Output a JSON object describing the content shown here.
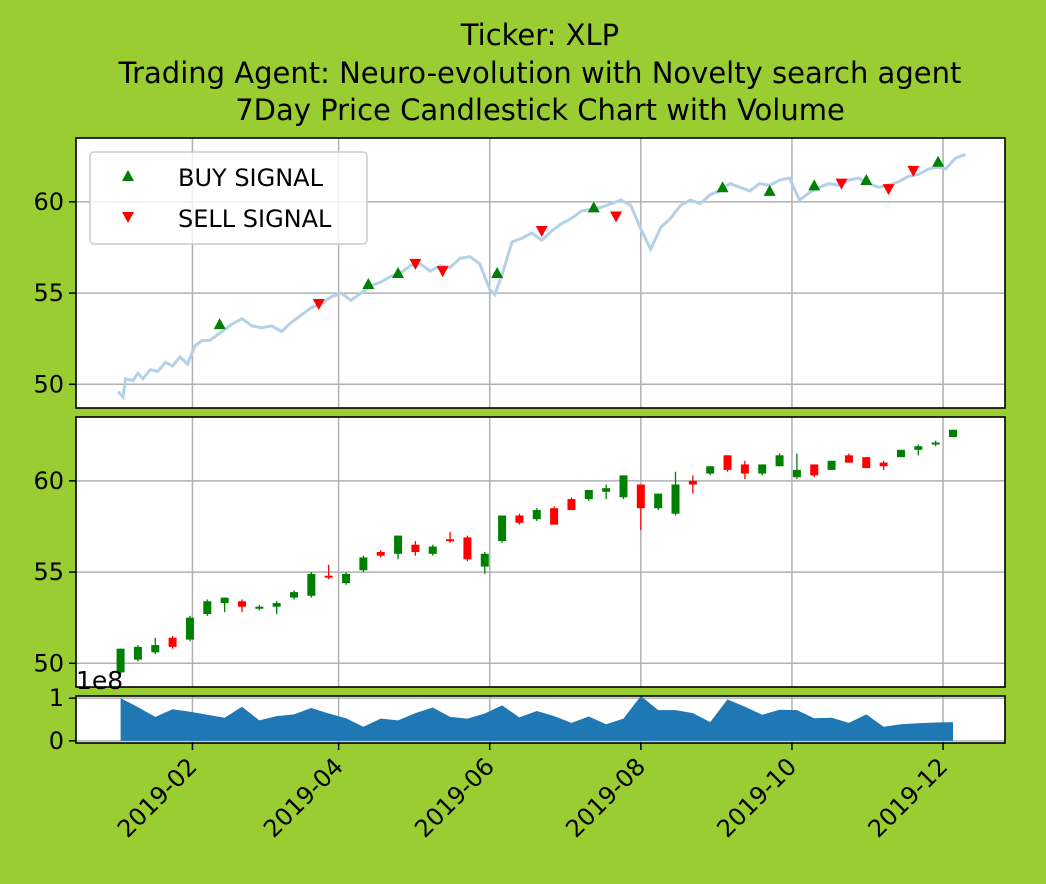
{
  "title_lines": [
    "Ticker: XLP",
    "Trading Agent: Neuro-evolution with Novelty search agent",
    "7Day Price Candlestick Chart with Volume"
  ],
  "colors": {
    "background": "#9acd32",
    "price_line": "#b3d1e9",
    "buy": "#008000",
    "sell": "#ff0000",
    "volume": "#1f77b4",
    "grid": "#b0b0b0"
  },
  "x_axis": {
    "ticks": [
      "2019-02",
      "2019-04",
      "2019-06",
      "2019-08",
      "2019-10",
      "2019-12"
    ],
    "range": [
      "2018-12-16",
      "2019-12-26"
    ]
  },
  "volume_axis": {
    "offset_label": "1e8",
    "ticks": [
      "0",
      "1"
    ]
  },
  "chart_data": [
    {
      "type": "line",
      "name": "price-panel",
      "ylim": [
        48.7,
        63.5
      ],
      "yticks": [
        "50",
        "55",
        "60"
      ],
      "grid": true,
      "legend": {
        "placement": "top-left",
        "entries": [
          "BUY SIGNAL",
          "SELL SIGNAL"
        ]
      },
      "price": [
        [
          "2019-01-02",
          49.6
        ],
        [
          "2019-01-04",
          49.3
        ],
        [
          "2019-01-05",
          50.3
        ],
        [
          "2019-01-08",
          50.2
        ],
        [
          "2019-01-10",
          50.6
        ],
        [
          "2019-01-12",
          50.3
        ],
        [
          "2019-01-15",
          50.8
        ],
        [
          "2019-01-18",
          50.7
        ],
        [
          "2019-01-21",
          51.2
        ],
        [
          "2019-01-24",
          51.0
        ],
        [
          "2019-01-27",
          51.5
        ],
        [
          "2019-01-30",
          51.1
        ],
        [
          "2019-02-02",
          52.1
        ],
        [
          "2019-02-05",
          52.4
        ],
        [
          "2019-02-08",
          52.4
        ],
        [
          "2019-02-11",
          52.7
        ],
        [
          "2019-02-14",
          53.0
        ],
        [
          "2019-02-17",
          53.3
        ],
        [
          "2019-02-21",
          53.6
        ],
        [
          "2019-02-25",
          53.2
        ],
        [
          "2019-03-01",
          53.1
        ],
        [
          "2019-03-05",
          53.2
        ],
        [
          "2019-03-09",
          52.9
        ],
        [
          "2019-03-13",
          53.4
        ],
        [
          "2019-03-17",
          53.8
        ],
        [
          "2019-03-21",
          54.2
        ],
        [
          "2019-03-25",
          54.4
        ],
        [
          "2019-03-29",
          54.8
        ],
        [
          "2019-04-02",
          55.0
        ],
        [
          "2019-04-06",
          54.6
        ],
        [
          "2019-04-10",
          55.0
        ],
        [
          "2019-04-14",
          55.4
        ],
        [
          "2019-04-18",
          55.6
        ],
        [
          "2019-04-22",
          55.9
        ],
        [
          "2019-04-26",
          56.1
        ],
        [
          "2019-04-30",
          56.5
        ],
        [
          "2019-05-04",
          56.6
        ],
        [
          "2019-05-08",
          56.2
        ],
        [
          "2019-05-12",
          56.5
        ],
        [
          "2019-05-16",
          56.4
        ],
        [
          "2019-05-20",
          56.9
        ],
        [
          "2019-05-24",
          57.0
        ],
        [
          "2019-05-28",
          56.6
        ],
        [
          "2019-06-01",
          55.2
        ],
        [
          "2019-06-03",
          54.9
        ],
        [
          "2019-06-06",
          56.0
        ],
        [
          "2019-06-10",
          57.8
        ],
        [
          "2019-06-14",
          58.0
        ],
        [
          "2019-06-18",
          58.3
        ],
        [
          "2019-06-22",
          57.9
        ],
        [
          "2019-06-26",
          58.4
        ],
        [
          "2019-06-30",
          58.8
        ],
        [
          "2019-07-04",
          59.1
        ],
        [
          "2019-07-08",
          59.5
        ],
        [
          "2019-07-12",
          59.6
        ],
        [
          "2019-07-16",
          59.7
        ],
        [
          "2019-07-20",
          59.9
        ],
        [
          "2019-07-24",
          60.1
        ],
        [
          "2019-07-28",
          59.8
        ],
        [
          "2019-08-01",
          58.5
        ],
        [
          "2019-08-05",
          57.4
        ],
        [
          "2019-08-09",
          58.6
        ],
        [
          "2019-08-13",
          59.1
        ],
        [
          "2019-08-17",
          59.8
        ],
        [
          "2019-08-21",
          60.1
        ],
        [
          "2019-08-25",
          59.9
        ],
        [
          "2019-08-29",
          60.4
        ],
        [
          "2019-09-02",
          60.6
        ],
        [
          "2019-09-06",
          61.0
        ],
        [
          "2019-09-10",
          60.8
        ],
        [
          "2019-09-14",
          60.6
        ],
        [
          "2019-09-18",
          61.0
        ],
        [
          "2019-09-22",
          60.9
        ],
        [
          "2019-09-26",
          61.2
        ],
        [
          "2019-09-30",
          61.3
        ],
        [
          "2019-10-04",
          60.1
        ],
        [
          "2019-10-08",
          60.5
        ],
        [
          "2019-10-12",
          60.8
        ],
        [
          "2019-10-16",
          61.0
        ],
        [
          "2019-10-20",
          60.9
        ],
        [
          "2019-10-24",
          61.2
        ],
        [
          "2019-10-28",
          61.3
        ],
        [
          "2019-11-01",
          61.0
        ],
        [
          "2019-11-05",
          60.8
        ],
        [
          "2019-11-09",
          60.9
        ],
        [
          "2019-11-13",
          61.1
        ],
        [
          "2019-11-17",
          61.4
        ],
        [
          "2019-11-21",
          61.5
        ],
        [
          "2019-11-25",
          61.8
        ],
        [
          "2019-11-29",
          61.9
        ],
        [
          "2019-12-02",
          61.8
        ],
        [
          "2019-12-06",
          62.4
        ],
        [
          "2019-12-10",
          62.6
        ]
      ],
      "buy_signals": [
        [
          "2019-02-12",
          53.3
        ],
        [
          "2019-04-13",
          55.5
        ],
        [
          "2019-04-25",
          56.1
        ],
        [
          "2019-06-04",
          56.1
        ],
        [
          "2019-07-13",
          59.7
        ],
        [
          "2019-09-03",
          60.8
        ],
        [
          "2019-09-22",
          60.6
        ],
        [
          "2019-10-10",
          60.9
        ],
        [
          "2019-10-31",
          61.2
        ],
        [
          "2019-11-29",
          62.2
        ]
      ],
      "sell_signals": [
        [
          "2019-03-24",
          54.4
        ],
        [
          "2019-05-02",
          56.6
        ],
        [
          "2019-05-13",
          56.2
        ],
        [
          "2019-06-22",
          58.4
        ],
        [
          "2019-07-22",
          59.2
        ],
        [
          "2019-10-21",
          61.0
        ],
        [
          "2019-11-09",
          60.7
        ],
        [
          "2019-11-19",
          61.7
        ]
      ]
    },
    {
      "type": "candlestick",
      "name": "candle-panel",
      "ylim": [
        48.7,
        63.5
      ],
      "yticks": [
        "50",
        "55",
        "60"
      ],
      "grid": true,
      "candles": [
        [
          "2019-01-03",
          49.5,
          50.8,
          49.4,
          50.8
        ],
        [
          "2019-01-10",
          50.2,
          51.0,
          50.1,
          50.9
        ],
        [
          "2019-01-17",
          50.6,
          51.4,
          50.5,
          51.0
        ],
        [
          "2019-01-24",
          51.4,
          51.5,
          50.8,
          50.9
        ],
        [
          "2019-01-31",
          51.3,
          52.6,
          51.2,
          52.5
        ],
        [
          "2019-02-07",
          52.7,
          53.5,
          52.6,
          53.4
        ],
        [
          "2019-02-14",
          53.3,
          53.6,
          52.8,
          53.6
        ],
        [
          "2019-02-21",
          53.4,
          53.5,
          52.8,
          53.1
        ],
        [
          "2019-02-28",
          53.0,
          53.2,
          52.9,
          53.1
        ],
        [
          "2019-03-07",
          53.1,
          53.4,
          52.7,
          53.3
        ],
        [
          "2019-03-14",
          53.6,
          54.0,
          53.5,
          53.9
        ],
        [
          "2019-03-21",
          53.7,
          55.0,
          53.6,
          54.9
        ],
        [
          "2019-03-28",
          54.8,
          55.4,
          54.6,
          54.7
        ],
        [
          "2019-04-04",
          54.4,
          55.0,
          54.3,
          54.9
        ],
        [
          "2019-04-11",
          55.1,
          55.9,
          55.0,
          55.8
        ],
        [
          "2019-04-18",
          56.1,
          56.2,
          55.8,
          55.9
        ],
        [
          "2019-04-25",
          56.0,
          57.0,
          55.7,
          57.0
        ],
        [
          "2019-05-02",
          56.5,
          56.7,
          55.9,
          56.1
        ],
        [
          "2019-05-09",
          56.0,
          56.5,
          55.9,
          56.4
        ],
        [
          "2019-05-16",
          56.8,
          57.2,
          56.6,
          56.7
        ],
        [
          "2019-05-23",
          56.9,
          57.0,
          55.6,
          55.7
        ],
        [
          "2019-05-30",
          55.3,
          56.1,
          54.9,
          56.0
        ],
        [
          "2019-06-06",
          56.7,
          58.1,
          56.6,
          58.1
        ],
        [
          "2019-06-13",
          58.1,
          58.2,
          57.6,
          57.7
        ],
        [
          "2019-06-20",
          57.9,
          58.5,
          57.8,
          58.4
        ],
        [
          "2019-06-27",
          58.5,
          58.6,
          57.6,
          57.6
        ],
        [
          "2019-07-04",
          59.0,
          59.1,
          58.4,
          58.4
        ],
        [
          "2019-07-11",
          59.0,
          59.5,
          58.9,
          59.5
        ],
        [
          "2019-07-18",
          59.4,
          59.8,
          59.0,
          59.6
        ],
        [
          "2019-07-25",
          59.1,
          60.3,
          59.0,
          60.3
        ],
        [
          "2019-08-01",
          59.8,
          59.8,
          57.3,
          58.5
        ],
        [
          "2019-08-08",
          58.5,
          59.3,
          58.4,
          59.3
        ],
        [
          "2019-08-15",
          58.2,
          60.5,
          58.1,
          59.8
        ],
        [
          "2019-08-22",
          60.0,
          60.3,
          59.3,
          59.8
        ],
        [
          "2019-08-29",
          60.4,
          60.8,
          60.3,
          60.8
        ],
        [
          "2019-09-05",
          61.4,
          61.4,
          60.5,
          60.6
        ],
        [
          "2019-09-12",
          60.9,
          61.1,
          60.1,
          60.4
        ],
        [
          "2019-09-19",
          60.4,
          60.9,
          60.3,
          60.9
        ],
        [
          "2019-09-26",
          60.8,
          61.5,
          60.8,
          61.4
        ],
        [
          "2019-10-03",
          60.2,
          61.5,
          60.1,
          60.6
        ],
        [
          "2019-10-10",
          60.9,
          60.9,
          60.2,
          60.3
        ],
        [
          "2019-10-17",
          60.6,
          61.1,
          60.6,
          61.1
        ],
        [
          "2019-10-24",
          61.4,
          61.5,
          61.0,
          61.0
        ],
        [
          "2019-10-31",
          61.3,
          61.3,
          60.7,
          60.7
        ],
        [
          "2019-11-07",
          61.0,
          61.1,
          60.6,
          60.8
        ],
        [
          "2019-11-14",
          61.3,
          61.7,
          61.3,
          61.7
        ],
        [
          "2019-11-21",
          61.7,
          62.0,
          61.4,
          61.9
        ],
        [
          "2019-11-28",
          62.0,
          62.2,
          61.9,
          62.1
        ],
        [
          "2019-12-05",
          62.4,
          62.8,
          62.4,
          62.8
        ]
      ]
    },
    {
      "type": "area",
      "name": "volume-panel",
      "ylim": [
        -0.05,
        1.05
      ],
      "yticks": [
        "0",
        "1"
      ],
      "grid": true,
      "volume": [
        [
          "2019-01-03",
          1.0
        ],
        [
          "2019-01-10",
          0.79
        ],
        [
          "2019-01-17",
          0.56
        ],
        [
          "2019-01-24",
          0.74
        ],
        [
          "2019-01-31",
          0.68
        ],
        [
          "2019-02-07",
          0.61
        ],
        [
          "2019-02-14",
          0.54
        ],
        [
          "2019-02-21",
          0.8
        ],
        [
          "2019-02-28",
          0.48
        ],
        [
          "2019-03-07",
          0.58
        ],
        [
          "2019-03-14",
          0.62
        ],
        [
          "2019-03-21",
          0.77
        ],
        [
          "2019-03-28",
          0.64
        ],
        [
          "2019-04-04",
          0.53
        ],
        [
          "2019-04-11",
          0.33
        ],
        [
          "2019-04-18",
          0.52
        ],
        [
          "2019-04-25",
          0.48
        ],
        [
          "2019-05-02",
          0.65
        ],
        [
          "2019-05-09",
          0.78
        ],
        [
          "2019-05-16",
          0.56
        ],
        [
          "2019-05-23",
          0.52
        ],
        [
          "2019-05-30",
          0.64
        ],
        [
          "2019-06-06",
          0.83
        ],
        [
          "2019-06-13",
          0.55
        ],
        [
          "2019-06-20",
          0.7
        ],
        [
          "2019-06-27",
          0.58
        ],
        [
          "2019-07-04",
          0.42
        ],
        [
          "2019-07-11",
          0.57
        ],
        [
          "2019-07-18",
          0.39
        ],
        [
          "2019-07-25",
          0.52
        ],
        [
          "2019-08-01",
          1.2
        ],
        [
          "2019-08-08",
          0.72
        ],
        [
          "2019-08-15",
          0.72
        ],
        [
          "2019-08-22",
          0.65
        ],
        [
          "2019-08-29",
          0.44
        ],
        [
          "2019-09-05",
          0.97
        ],
        [
          "2019-09-12",
          0.8
        ],
        [
          "2019-09-19",
          0.61
        ],
        [
          "2019-09-26",
          0.73
        ],
        [
          "2019-10-03",
          0.72
        ],
        [
          "2019-10-10",
          0.53
        ],
        [
          "2019-10-17",
          0.54
        ],
        [
          "2019-10-24",
          0.42
        ],
        [
          "2019-10-31",
          0.62
        ],
        [
          "2019-11-07",
          0.33
        ],
        [
          "2019-11-14",
          0.39
        ],
        [
          "2019-11-21",
          0.41
        ],
        [
          "2019-11-28",
          0.43
        ],
        [
          "2019-12-05",
          0.44
        ]
      ]
    }
  ]
}
